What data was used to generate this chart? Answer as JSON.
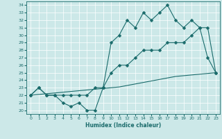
{
  "xlabel": "Humidex (Indice chaleur)",
  "bg_color": "#cce8e8",
  "grid_color": "#ffffff",
  "line_color": "#1a6b6b",
  "xlim": [
    -0.5,
    23.5
  ],
  "ylim": [
    19.5,
    34.5
  ],
  "xticks": [
    0,
    1,
    2,
    3,
    4,
    5,
    6,
    7,
    8,
    9,
    10,
    11,
    12,
    13,
    14,
    15,
    16,
    17,
    18,
    19,
    20,
    21,
    22,
    23
  ],
  "yticks": [
    20,
    21,
    22,
    23,
    24,
    25,
    26,
    27,
    28,
    29,
    30,
    31,
    32,
    33,
    34
  ],
  "line1_x": [
    0,
    1,
    2,
    3,
    4,
    5,
    6,
    7,
    8,
    9,
    10,
    11,
    12,
    13,
    14,
    15,
    16,
    17,
    18,
    19,
    20,
    21,
    22,
    23
  ],
  "line1_y": [
    22,
    23,
    22,
    22,
    21,
    20.5,
    21,
    20,
    20,
    23,
    29,
    30,
    32,
    31,
    33,
    32,
    33,
    34,
    32,
    31,
    32,
    31,
    27,
    25
  ],
  "line2_x": [
    0,
    1,
    2,
    3,
    4,
    5,
    6,
    7,
    8,
    9,
    10,
    11,
    12,
    13,
    14,
    15,
    16,
    17,
    18,
    19,
    20,
    21,
    22,
    23
  ],
  "line2_y": [
    22,
    22.1,
    22.2,
    22.3,
    22.4,
    22.5,
    22.6,
    22.7,
    22.8,
    22.9,
    23,
    23.1,
    23.3,
    23.5,
    23.7,
    23.9,
    24.1,
    24.3,
    24.5,
    24.6,
    24.7,
    24.8,
    24.9,
    25
  ],
  "line3_x": [
    0,
    1,
    2,
    3,
    4,
    5,
    6,
    7,
    8,
    9,
    10,
    11,
    12,
    13,
    14,
    15,
    16,
    17,
    18,
    19,
    20,
    21,
    22,
    23
  ],
  "line3_y": [
    22,
    23,
    22,
    22,
    22,
    22,
    22,
    22,
    23,
    23,
    25,
    26,
    26,
    27,
    28,
    28,
    28,
    29,
    29,
    29,
    30,
    31,
    31,
    25
  ]
}
